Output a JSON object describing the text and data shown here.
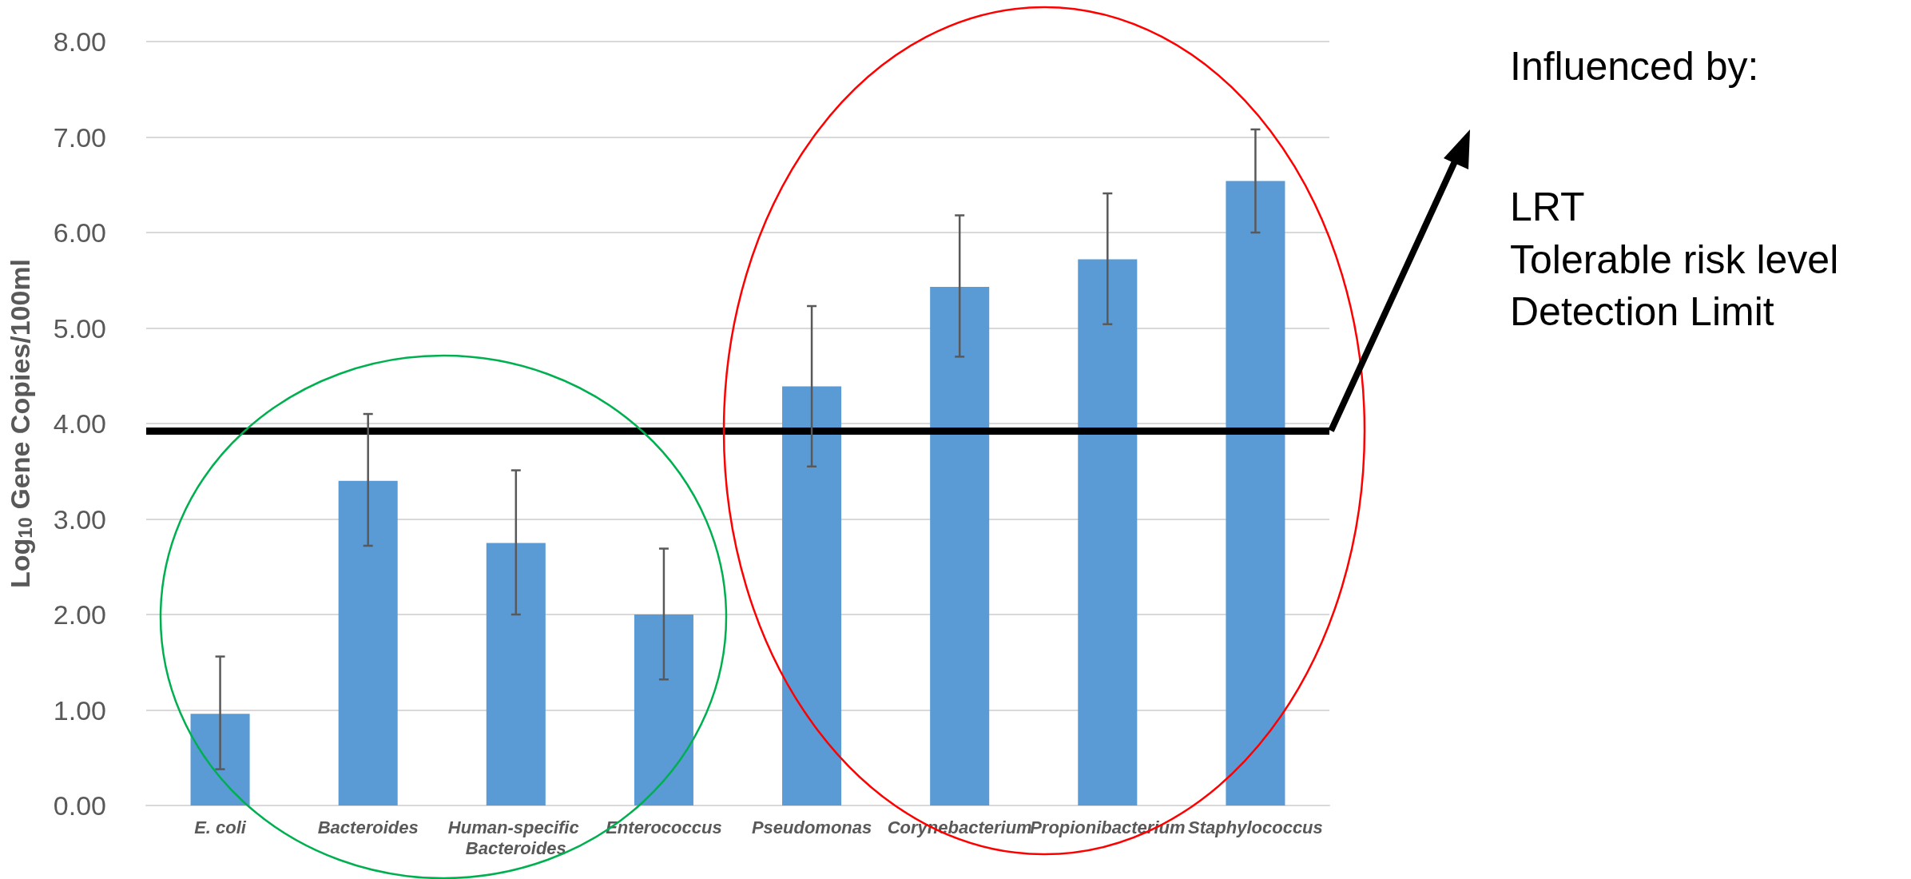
{
  "chart_data": {
    "type": "bar",
    "ylabel": "Log$_{10}$ Gene Copies/100ml",
    "categories": [
      "E. coli",
      "Bacteroides",
      "Human-specific Bacteroides",
      "Enterococcus",
      "Pseudomonas",
      "Corynebacterium",
      "Propionibacterium",
      "Staphylococcus"
    ],
    "values": [
      0.96,
      3.4,
      2.75,
      2.0,
      4.39,
      5.43,
      5.72,
      6.54
    ],
    "errors": [
      [
        0.38,
        1.56
      ],
      [
        2.72,
        4.1
      ],
      [
        2.0,
        3.51
      ],
      [
        1.32,
        2.69
      ],
      [
        3.55,
        5.23
      ],
      [
        4.7,
        6.18
      ],
      [
        5.04,
        6.41
      ],
      [
        6.0,
        7.08
      ]
    ],
    "color": "#5b9bd5",
    "ylim": [
      0,
      8
    ],
    "yticks": [
      {
        "value": 0,
        "label": "0.00"
      },
      {
        "value": 1,
        "label": "1.00"
      },
      {
        "value": 2,
        "label": "2.00"
      },
      {
        "value": 3,
        "label": "3.00"
      },
      {
        "value": 4,
        "label": "4.00"
      },
      {
        "value": 5,
        "label": "5.00"
      },
      {
        "value": 6,
        "label": "6.00"
      },
      {
        "value": 7,
        "label": "7.00"
      },
      {
        "value": 8,
        "label": "8.00"
      }
    ],
    "grid": "y",
    "ref_lines": [
      {
        "axis": "y",
        "value": 3.92,
        "color": "#000000"
      }
    ],
    "annotations": [
      "Influenced by:",
      "LRT",
      "Tolerable risk level",
      "Detection Limit"
    ]
  }
}
